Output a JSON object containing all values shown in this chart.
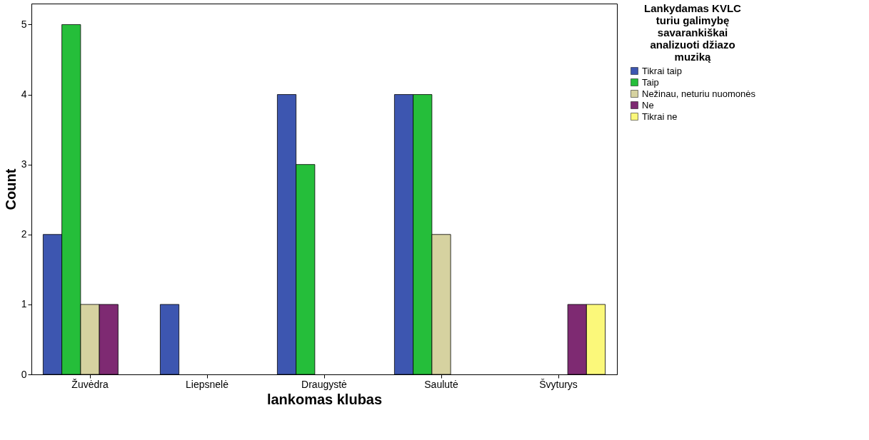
{
  "chart_data": {
    "type": "bar",
    "xlabel": "lankomas klubas",
    "ylabel": "Count",
    "legend_title": "Lankydamas KVLC turiu galimybę savarankiškai analizuoti džiazo muziką",
    "categories": [
      "Žuvėdra",
      "Liepsnelė",
      "Draugystė",
      "Saulutė",
      "Švyturys"
    ],
    "series": [
      {
        "name": "Tikrai taip",
        "color": "#3d56b0",
        "values": [
          2,
          1,
          4,
          4,
          null
        ]
      },
      {
        "name": "Taip",
        "color": "#25be3a",
        "values": [
          5,
          null,
          3,
          4,
          null
        ]
      },
      {
        "name": "Nežinau, neturiu nuomonės",
        "color": "#d6d2a0",
        "values": [
          1,
          null,
          null,
          2,
          null
        ]
      },
      {
        "name": "Ne",
        "color": "#7e2a72",
        "values": [
          1,
          null,
          null,
          null,
          1
        ]
      },
      {
        "name": "Tikrai ne",
        "color": "#fbf87a",
        "values": [
          null,
          null,
          null,
          null,
          1
        ]
      }
    ],
    "ylim": [
      0,
      5.3
    ],
    "yticks": [
      0,
      1,
      2,
      3,
      4,
      5
    ],
    "grid": false,
    "legend": "top right"
  }
}
